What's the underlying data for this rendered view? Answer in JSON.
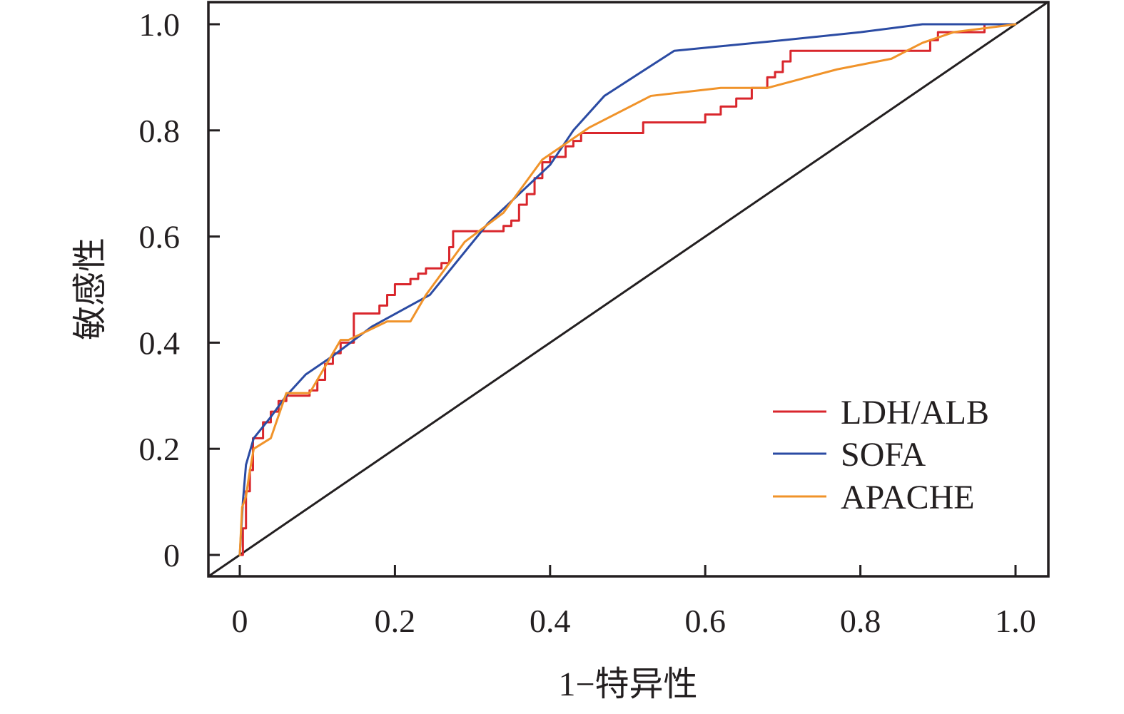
{
  "chart_data": {
    "type": "line",
    "title": "",
    "xlabel": "1−特异性",
    "ylabel": "敏感性",
    "xlim": [
      -0.02,
      1.02
    ],
    "ylim": [
      -0.04,
      1.04
    ],
    "x_ticks": [
      0,
      0.2,
      0.4,
      0.6,
      0.8,
      1.0
    ],
    "x_tick_labels": [
      "0",
      "0.2",
      "0.4",
      "0.6",
      "0.8",
      "1.0"
    ],
    "y_ticks": [
      0,
      0.2,
      0.4,
      0.6,
      0.8,
      1.0
    ],
    "y_tick_labels": [
      "0",
      "0.2",
      "0.4",
      "0.6",
      "0.8",
      "1.0"
    ],
    "grid": false,
    "legend_position": "bottom-right",
    "reference_line": {
      "x": [
        -0.04,
        1.04
      ],
      "y": [
        -0.04,
        1.04
      ],
      "color": "#231f20"
    },
    "series": [
      {
        "name": "LDH/ALB",
        "color": "#d9262c",
        "step": true,
        "x": [
          0,
          0.004,
          0.008,
          0.013,
          0.017,
          0.03,
          0.04,
          0.05,
          0.06,
          0.09,
          0.1,
          0.11,
          0.12,
          0.13,
          0.147,
          0.18,
          0.19,
          0.2,
          0.22,
          0.23,
          0.24,
          0.26,
          0.27,
          0.275,
          0.3,
          0.34,
          0.35,
          0.36,
          0.37,
          0.38,
          0.39,
          0.4,
          0.42,
          0.43,
          0.44,
          0.47,
          0.52,
          0.57,
          0.6,
          0.62,
          0.64,
          0.66,
          0.67,
          0.68,
          0.69,
          0.7,
          0.71,
          0.75,
          0.8,
          0.85,
          0.89,
          0.9,
          0.94,
          0.96,
          1.0
        ],
        "y": [
          0,
          0.05,
          0.12,
          0.16,
          0.22,
          0.25,
          0.27,
          0.29,
          0.3,
          0.31,
          0.33,
          0.36,
          0.38,
          0.4,
          0.455,
          0.47,
          0.49,
          0.51,
          0.52,
          0.53,
          0.54,
          0.55,
          0.58,
          0.61,
          0.61,
          0.62,
          0.63,
          0.66,
          0.68,
          0.71,
          0.74,
          0.75,
          0.77,
          0.78,
          0.795,
          0.795,
          0.815,
          0.815,
          0.83,
          0.845,
          0.86,
          0.88,
          0.88,
          0.9,
          0.91,
          0.93,
          0.95,
          0.95,
          0.95,
          0.95,
          0.97,
          0.985,
          0.985,
          1.0,
          1.0
        ]
      },
      {
        "name": "SOFA",
        "color": "#2b4ba3",
        "step": false,
        "x": [
          0,
          0.004,
          0.008,
          0.018,
          0.04,
          0.06,
          0.085,
          0.12,
          0.17,
          0.245,
          0.32,
          0.36,
          0.4,
          0.43,
          0.47,
          0.56,
          0.7,
          0.8,
          0.88,
          0.95,
          1.0
        ],
        "y": [
          0,
          0.1,
          0.17,
          0.22,
          0.26,
          0.3,
          0.34,
          0.375,
          0.43,
          0.49,
          0.625,
          0.68,
          0.735,
          0.8,
          0.865,
          0.95,
          0.97,
          0.985,
          1.0,
          1.0,
          1.0
        ]
      },
      {
        "name": "APACHE",
        "color": "#f0932a",
        "step": false,
        "x": [
          0,
          0.003,
          0.008,
          0.012,
          0.018,
          0.04,
          0.06,
          0.09,
          0.13,
          0.14,
          0.19,
          0.22,
          0.24,
          0.29,
          0.34,
          0.39,
          0.45,
          0.53,
          0.62,
          0.68,
          0.77,
          0.84,
          0.88,
          0.92,
          1.0
        ],
        "y": [
          0,
          0.09,
          0.11,
          0.15,
          0.2,
          0.22,
          0.305,
          0.305,
          0.405,
          0.405,
          0.44,
          0.44,
          0.49,
          0.59,
          0.645,
          0.745,
          0.805,
          0.865,
          0.88,
          0.88,
          0.915,
          0.935,
          0.965,
          0.985,
          1.0
        ]
      }
    ]
  }
}
